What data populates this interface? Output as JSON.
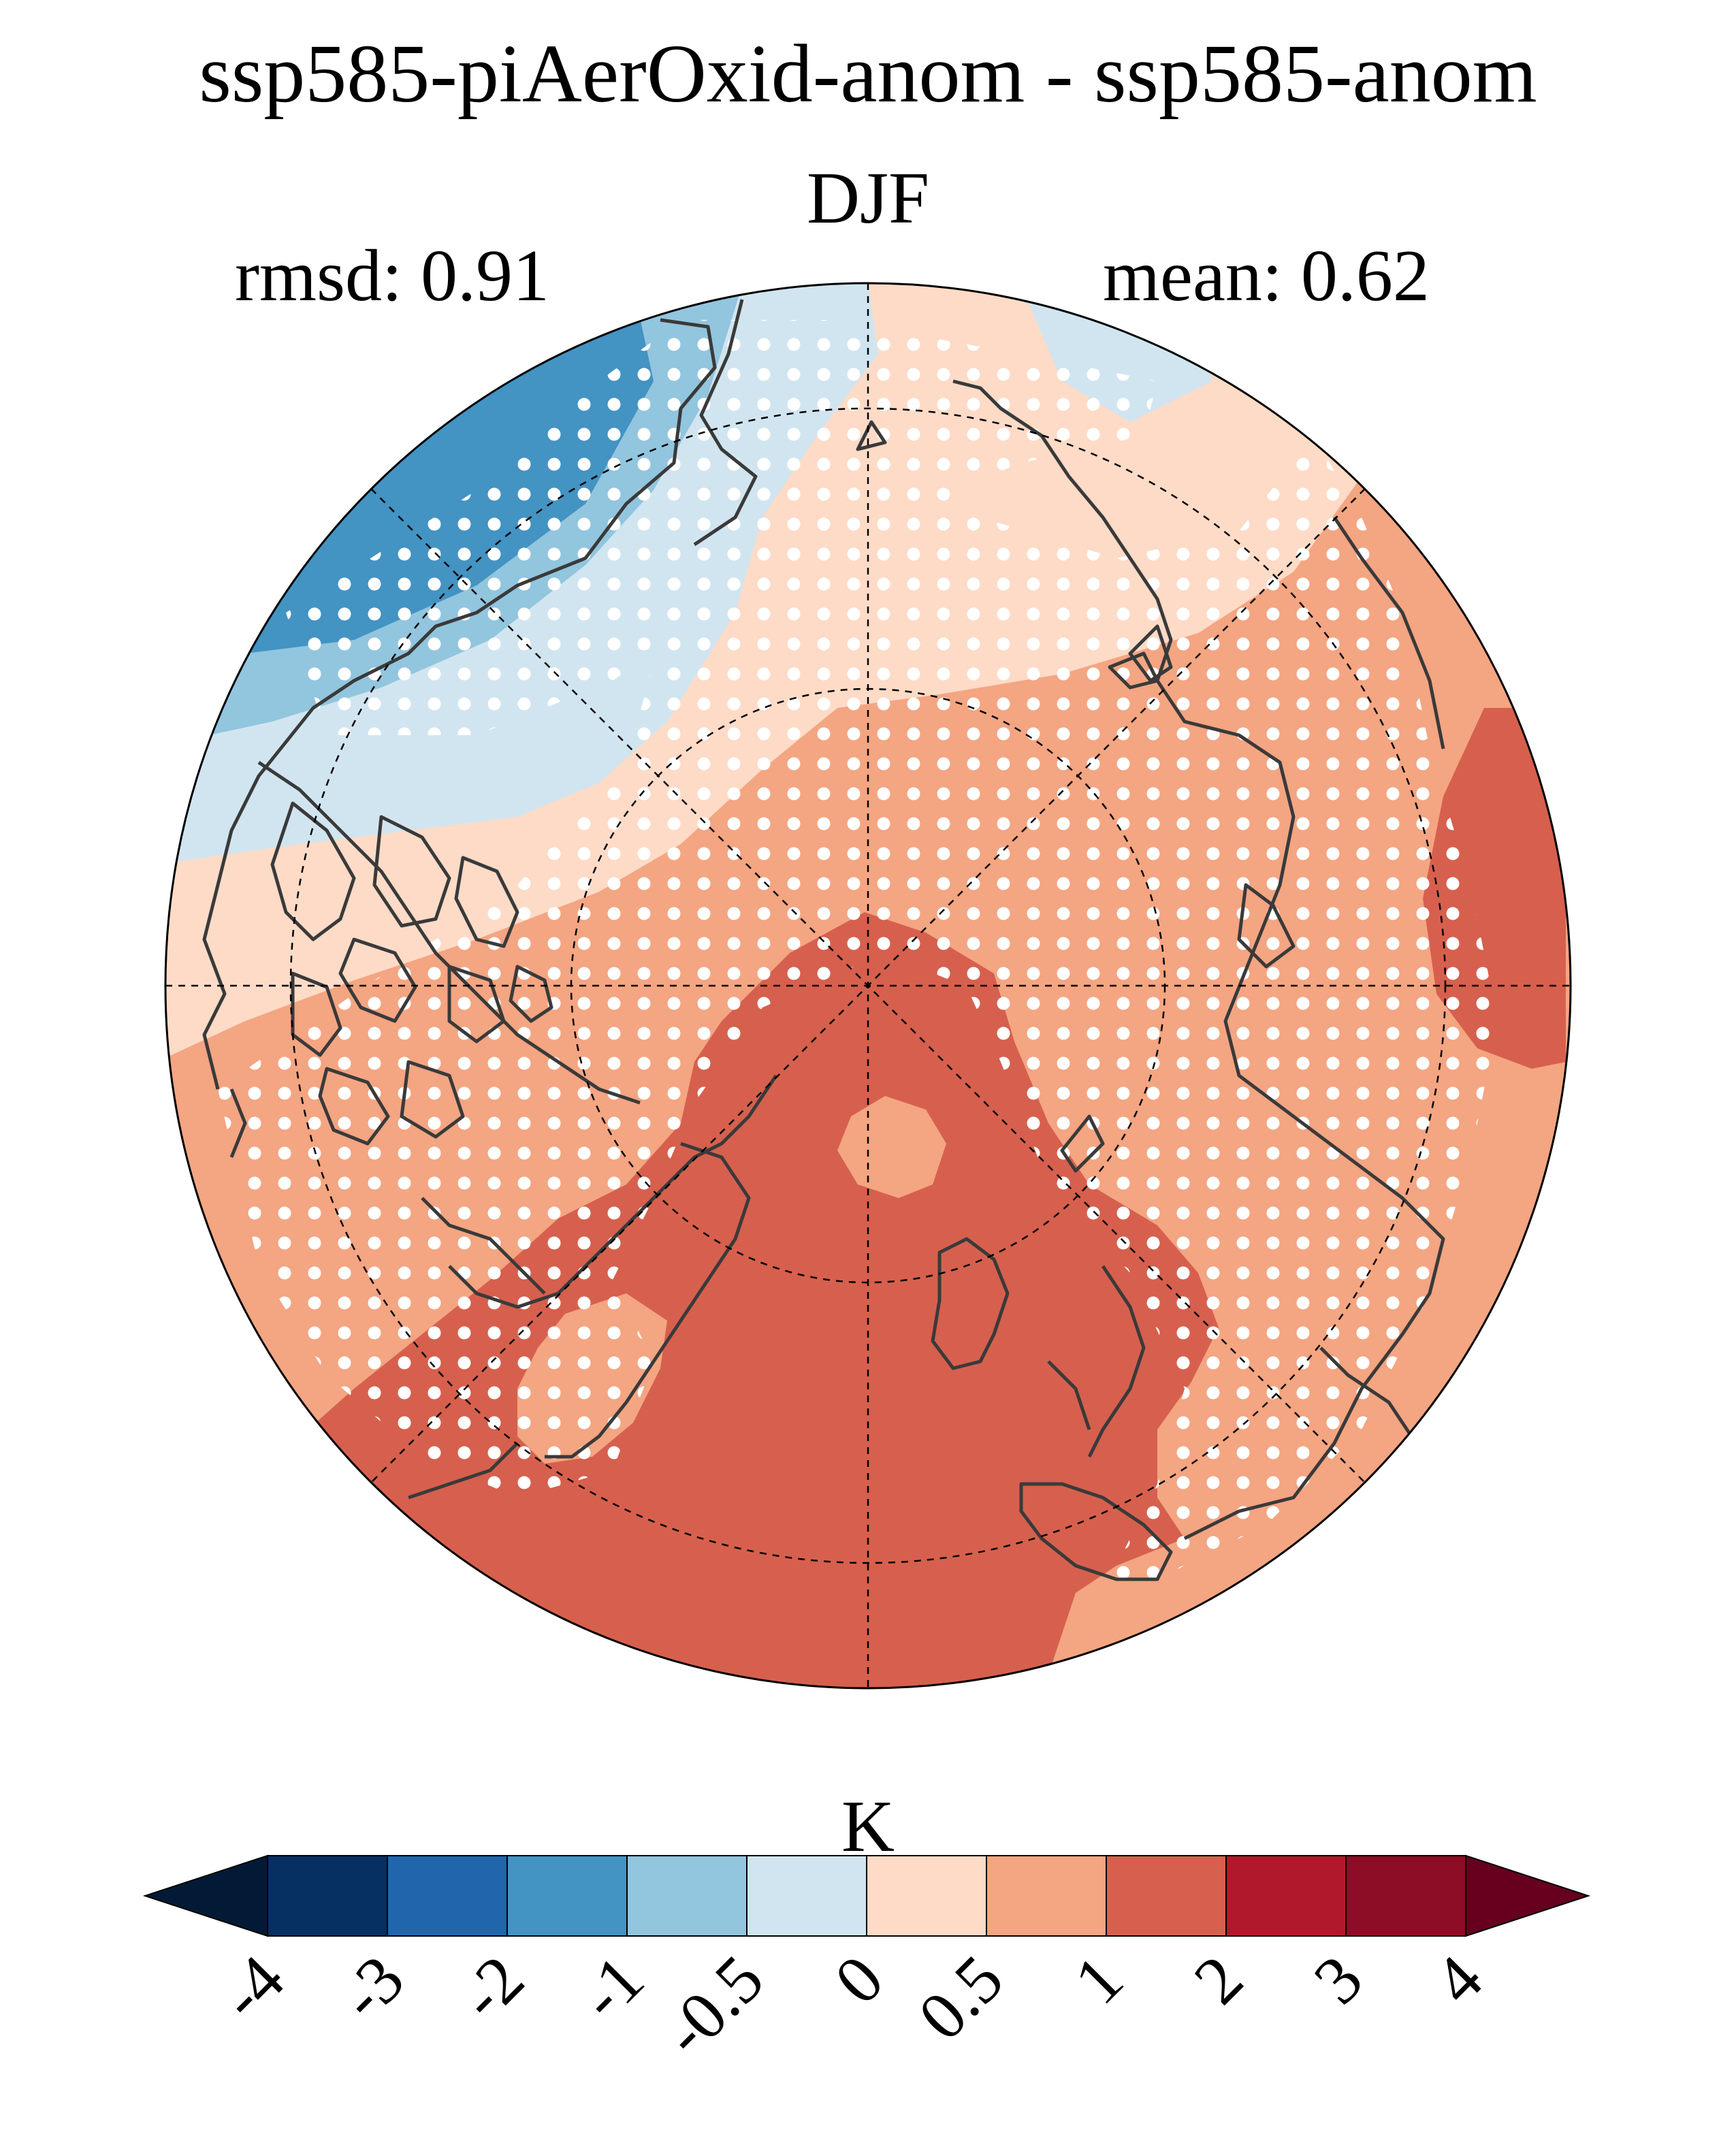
{
  "title": "ssp585-piAerOxid-anom - ssp585-anom",
  "season": "DJF",
  "stats": {
    "rmsd": "rmsd: 0.91",
    "mean": "mean: 0.62"
  },
  "colorbar": {
    "units": "K",
    "levels": [
      "-4",
      "-3",
      "-2",
      "-1",
      "-0.5",
      "0",
      "0.5",
      "1",
      "2",
      "3",
      "4"
    ],
    "colors": [
      "#053061",
      "#2166ac",
      "#4393c3",
      "#92c5de",
      "#d1e5f0",
      "#fddbc7",
      "#f4a582",
      "#d6604d",
      "#b2182b",
      "#8c0d25"
    ],
    "under_color": "#031a36",
    "over_color": "#67001f"
  },
  "map": {
    "projection": "north polar stereographic",
    "field": "temperature anomaly difference",
    "stippling": "white dots mark significant regions",
    "colors": {
      "strong_blue": "#4393c3",
      "blue": "#92c5de",
      "light_blue": "#d1e5f0",
      "light_red": "#fddbc7",
      "salmon": "#f4a582",
      "red": "#d6604d",
      "coastline": "#3a3a3a"
    }
  }
}
